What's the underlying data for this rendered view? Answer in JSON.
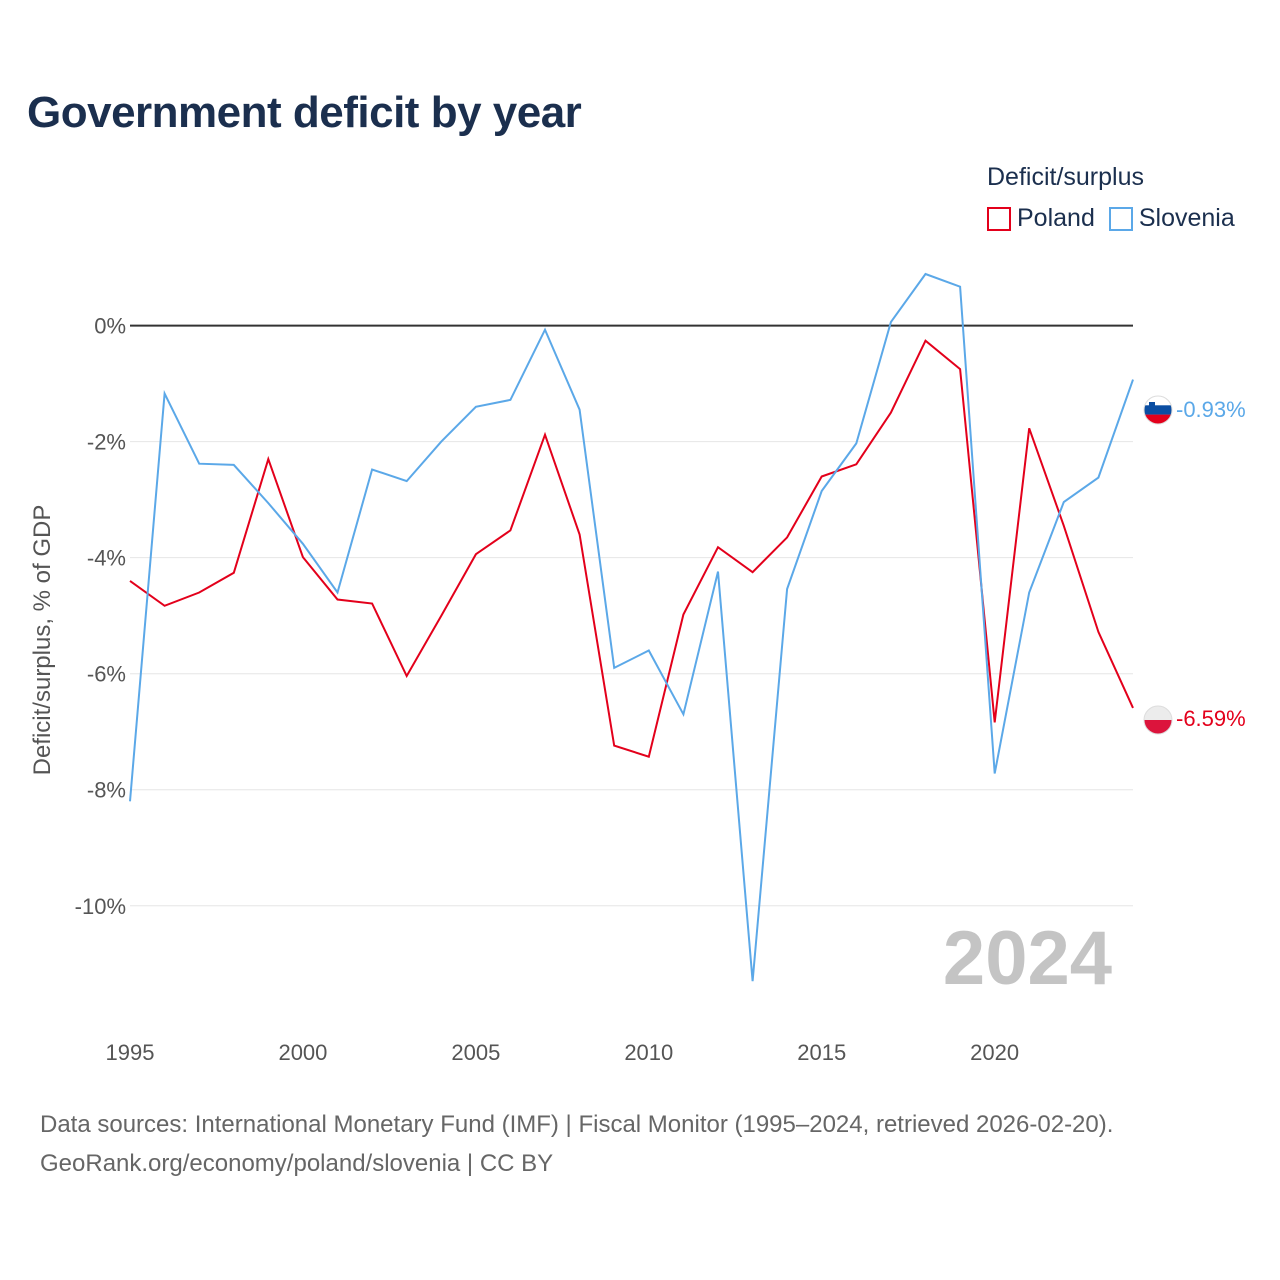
{
  "header": {
    "title": "Government deficit by year"
  },
  "legend": {
    "title": "Deficit/surplus",
    "items": [
      {
        "label": "Poland",
        "color": "#e3001b"
      },
      {
        "label": "Slovenia",
        "color": "#5ba8e8"
      }
    ]
  },
  "watermark_year": "2024",
  "footer": {
    "line1": "Data sources: International Monetary Fund (IMF) | Fiscal Monitor (1995–2024, retrieved 2026-02-20).",
    "line2": "GeoRank.org/economy/poland/slovenia | CC BY"
  },
  "chart_data": {
    "type": "line",
    "title": "Government deficit by year",
    "xlabel": "",
    "ylabel": "Deficit/surplus, % of GDP",
    "x": [
      1995,
      1996,
      1997,
      1998,
      1999,
      2000,
      2001,
      2002,
      2003,
      2004,
      2005,
      2006,
      2007,
      2008,
      2009,
      2010,
      2011,
      2012,
      2013,
      2014,
      2015,
      2016,
      2017,
      2018,
      2019,
      2020,
      2021,
      2022,
      2023,
      2024
    ],
    "xlim": [
      1995,
      2024
    ],
    "ylim": [
      -11.9,
      1.2
    ],
    "x_ticks": [
      1995,
      2000,
      2005,
      2010,
      2015,
      2020
    ],
    "y_ticks": [
      0,
      -2,
      -4,
      -6,
      -8,
      -10
    ],
    "y_tick_labels": [
      "0%",
      "-2%",
      "-4%",
      "-6%",
      "-8%",
      "-10%"
    ],
    "grid": true,
    "legend_position": "top-right",
    "series": [
      {
        "name": "Poland",
        "color": "#e3001b",
        "values": [
          -4.4,
          -4.83,
          -4.6,
          -4.26,
          -2.3,
          -3.99,
          -4.72,
          -4.79,
          -6.04,
          -5.0,
          -3.94,
          -3.53,
          -1.88,
          -3.6,
          -7.24,
          -7.43,
          -4.98,
          -3.82,
          -4.25,
          -3.65,
          -2.6,
          -2.39,
          -1.5,
          -0.26,
          -0.75,
          -6.84,
          -1.77,
          -3.45,
          -5.28,
          -6.59
        ],
        "end_label": "-6.59%"
      },
      {
        "name": "Slovenia",
        "color": "#5ba8e8",
        "values": [
          -8.2,
          -1.17,
          -2.38,
          -2.4,
          -3.06,
          -3.76,
          -4.6,
          -2.48,
          -2.68,
          -2.0,
          -1.4,
          -1.28,
          -0.07,
          -1.45,
          -5.9,
          -5.6,
          -6.7,
          -4.24,
          -11.3,
          -4.54,
          -2.85,
          -2.03,
          0.06,
          0.89,
          0.67,
          -7.72,
          -4.6,
          -3.04,
          -2.62,
          -0.93
        ],
        "end_label": "-0.93%"
      }
    ]
  }
}
